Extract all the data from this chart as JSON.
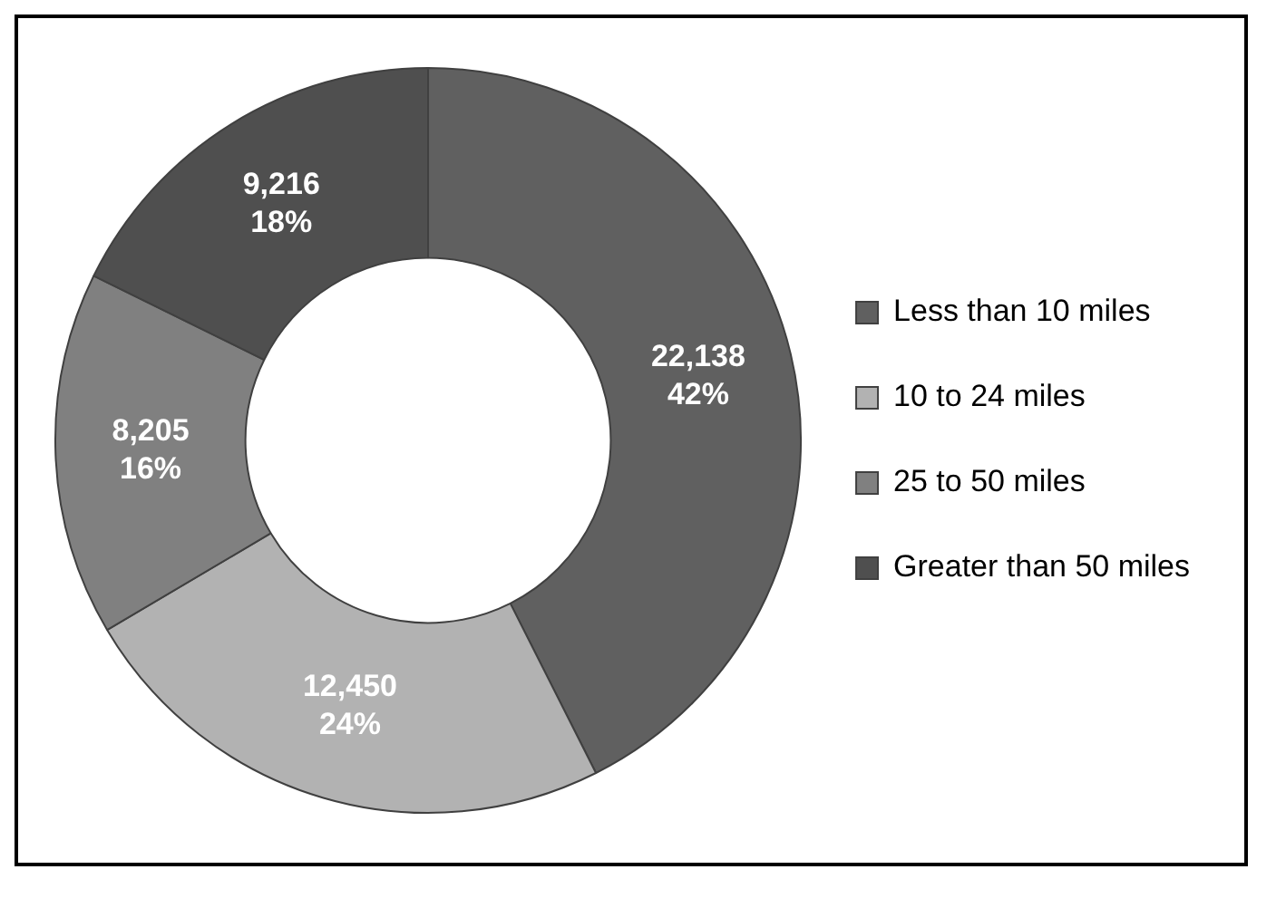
{
  "chart_data": {
    "type": "donut",
    "categories": [
      "Less than 10 miles",
      "10 to 24 miles",
      "25 to 50 miles",
      "Greater than 50 miles"
    ],
    "values": [
      22138,
      12450,
      8205,
      9216
    ],
    "colors": [
      "#606060",
      "#b2b2b2",
      "#808080",
      "#4f4f4f"
    ],
    "value_labels": [
      "22,138\n42%",
      "12,450\n24%",
      "8,205\n16%",
      "9,216\n18%"
    ],
    "legend": "right"
  }
}
